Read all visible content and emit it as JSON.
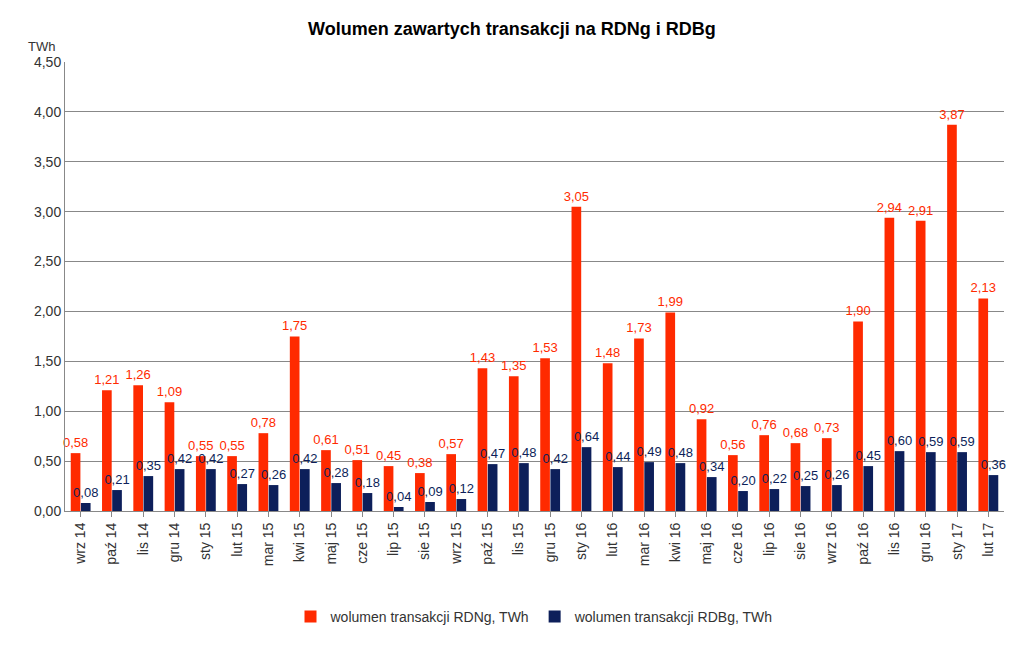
{
  "chart_data": {
    "type": "bar",
    "title": "Wolumen zawartych transakcji na RDNg i RDBg",
    "y_label": "TWh",
    "categories": [
      "wrz 14",
      "paź 14",
      "lis 14",
      "gru 14",
      "sty 15",
      "lut 15",
      "mar 15",
      "kwi 15",
      "maj 15",
      "cze 15",
      "lip 15",
      "sie 15",
      "wrz 15",
      "paź 15",
      "lis 15",
      "gru 15",
      "sty 16",
      "lut 16",
      "mar 16",
      "kwi 16",
      "maj 16",
      "cze 16",
      "lip 16",
      "sie 16",
      "wrz 16",
      "paź 16",
      "lis 16",
      "gru 16",
      "sty 17",
      "lut 17"
    ],
    "series": [
      {
        "name": "wolumen transakcji RDNg, TWh",
        "color": "#ff2a00",
        "values": [
          0.58,
          1.21,
          1.26,
          1.09,
          0.55,
          0.55,
          0.78,
          1.75,
          0.61,
          0.51,
          0.45,
          0.38,
          0.57,
          1.43,
          1.35,
          1.53,
          3.05,
          1.48,
          1.73,
          1.99,
          0.92,
          0.56,
          0.76,
          0.68,
          0.73,
          1.9,
          2.94,
          2.91,
          3.87,
          2.13
        ],
        "value_labels": [
          "0,58",
          "1,21",
          "1,26",
          "1,09",
          "0,55",
          "0,55",
          "0,78",
          "1,75",
          "0,61",
          "0,51",
          "0,45",
          "0,38",
          "0,57",
          "1,43",
          "1,35",
          "1,53",
          "3,05",
          "1,48",
          "1,73",
          "1,99",
          "0,92",
          "0,56",
          "0,76",
          "0,68",
          "0,73",
          "1,90",
          "2,94",
          "2,91",
          "3,87",
          "2,13"
        ]
      },
      {
        "name": "wolumen transakcji RDBg, TWh",
        "color": "#0d1f5a",
        "values": [
          0.08,
          0.21,
          0.35,
          0.42,
          0.42,
          0.27,
          0.26,
          0.42,
          0.28,
          0.18,
          0.04,
          0.09,
          0.12,
          0.47,
          0.48,
          0.42,
          0.64,
          0.44,
          0.49,
          0.48,
          0.34,
          0.2,
          0.22,
          0.25,
          0.26,
          0.45,
          0.6,
          0.59,
          0.59,
          0.36
        ],
        "value_labels": [
          "0,08",
          "0,21",
          "0,35",
          "0,42",
          "0,42",
          "0,27",
          "0,26",
          "0,42",
          "0,28",
          "0,18",
          "0,04",
          "0,09",
          "0,12",
          "0,47",
          "0,48",
          "0,42",
          "0,64",
          "0,44",
          "0,49",
          "0,48",
          "0,34",
          "0,20",
          "0,22",
          "0,25",
          "0,26",
          "0,45",
          "0,60",
          "0,59",
          "0,59",
          "0,36"
        ]
      }
    ],
    "ylim": [
      0,
      4.5
    ],
    "yticks": [
      {
        "value": 0,
        "label": "0,00"
      },
      {
        "value": 0.5,
        "label": "0,50"
      },
      {
        "value": 1,
        "label": "1,00"
      },
      {
        "value": 1.5,
        "label": "1,50"
      },
      {
        "value": 2,
        "label": "2,00"
      },
      {
        "value": 2.5,
        "label": "2,50"
      },
      {
        "value": 3,
        "label": "3,00"
      },
      {
        "value": 3.5,
        "label": "3,50"
      },
      {
        "value": 4,
        "label": "4,00"
      },
      {
        "value": 4.5,
        "label": "4,50"
      }
    ],
    "grid": true,
    "legend": "bottom",
    "data_labels": true
  }
}
